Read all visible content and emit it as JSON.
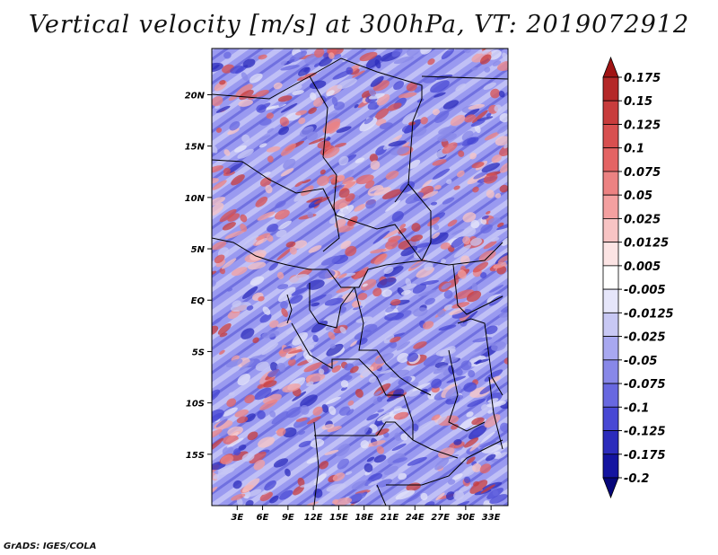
{
  "title": "Vertical velocity [m/s] at 300hPa, VT: 2019072912",
  "footer": "GrADS: IGES/COLA",
  "map": {
    "lat_labels": [
      "20N",
      "15N",
      "10N",
      "5N",
      "EQ",
      "5S",
      "10S",
      "15S"
    ],
    "lat_values": [
      20,
      15,
      10,
      5,
      0,
      -5,
      -10,
      -15
    ],
    "lon_labels": [
      "3E",
      "6E",
      "9E",
      "12E",
      "15E",
      "18E",
      "21E",
      "24E",
      "27E",
      "30E",
      "33E"
    ],
    "lon_values": [
      3,
      6,
      9,
      12,
      15,
      18,
      21,
      24,
      27,
      30,
      33
    ],
    "lon_range": [
      0,
      35
    ],
    "lat_range": [
      -20,
      24.5
    ]
  },
  "colorbar": {
    "labels": [
      "0.175",
      "0.15",
      "0.125",
      "0.1",
      "0.075",
      "0.05",
      "0.025",
      "0.0125",
      "0.005",
      "-0.005",
      "-0.0125",
      "-0.025",
      "-0.05",
      "-0.075",
      "-0.1",
      "-0.125",
      "-0.175",
      "-0.2"
    ],
    "colors": [
      "#a01414",
      "#b42828",
      "#c83c3c",
      "#d85050",
      "#e46464",
      "#ec8282",
      "#f4a0a0",
      "#f8c4c4",
      "#fce4e4",
      "#ffffff",
      "#e6e6fa",
      "#c8c8f4",
      "#a8a8f0",
      "#8888e8",
      "#6868e0",
      "#4848d4",
      "#2c2cbc",
      "#1414a0",
      "#06067a"
    ]
  }
}
